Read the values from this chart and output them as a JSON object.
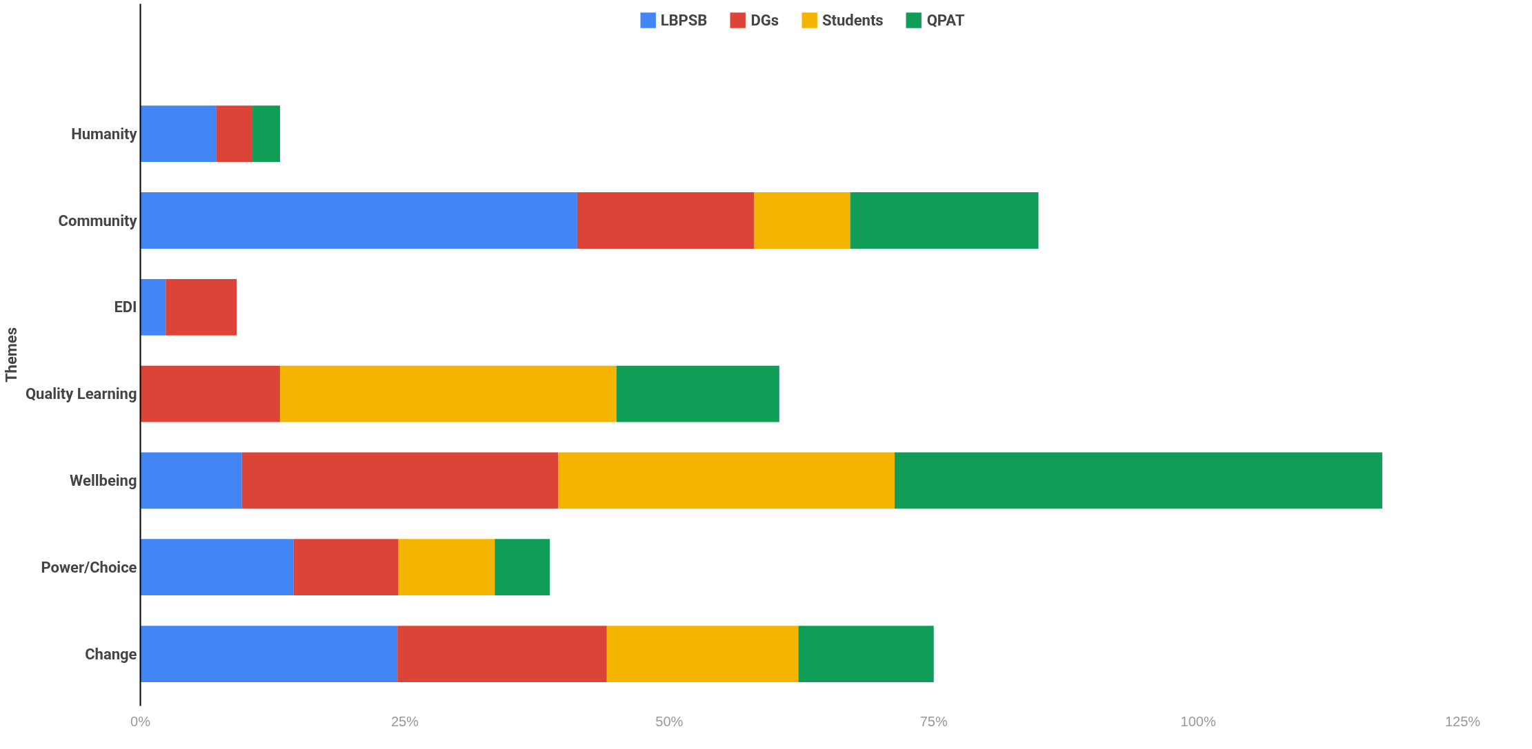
{
  "chart_data": {
    "type": "bar",
    "orientation": "horizontal",
    "stacked": true,
    "ylabel": "Themes",
    "categories": [
      "Humanity",
      "Community",
      "EDI",
      "Quality Learning",
      "Wellbeing",
      "Power/Choice",
      "Change"
    ],
    "series": [
      {
        "name": "LBPSB",
        "color": "#4285f4",
        "values": [
          7.2,
          41.3,
          2.4,
          0,
          9.6,
          14.5,
          24.3
        ]
      },
      {
        "name": "DGs",
        "color": "#db4437",
        "values": [
          3.4,
          16.7,
          6.7,
          13.2,
          29.9,
          9.9,
          19.8
        ]
      },
      {
        "name": "Students",
        "color": "#f4b400",
        "values": [
          0,
          9.1,
          0,
          31.8,
          31.8,
          9.1,
          18.1
        ]
      },
      {
        "name": "QPAT",
        "color": "#0f9d58",
        "values": [
          2.6,
          17.8,
          0,
          15.4,
          46.1,
          5.2,
          12.8
        ]
      }
    ],
    "xlim": [
      0,
      125
    ],
    "xticks": [
      {
        "value": 0,
        "label": "0%"
      },
      {
        "value": 25,
        "label": "25%"
      },
      {
        "value": 50,
        "label": "50%"
      },
      {
        "value": 75,
        "label": "75%"
      },
      {
        "value": 100,
        "label": "100%"
      },
      {
        "value": 125,
        "label": "125%"
      }
    ],
    "grid": false,
    "legend": "top"
  }
}
